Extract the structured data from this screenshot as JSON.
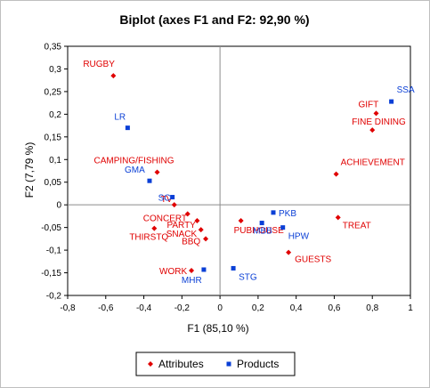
{
  "chart_data": {
    "type": "scatter",
    "title": "Biplot (axes F1 and F2: 92,90 %)",
    "xlabel": "F1 (85,10 %)",
    "ylabel": "F2 (7,79 %)",
    "xlim": [
      -0.8,
      1
    ],
    "ylim": [
      -0.2,
      0.35
    ],
    "xticks": [
      "-0,8",
      "-0,6",
      "-0,4",
      "-0,2",
      "0",
      "0,2",
      "0,4",
      "0,6",
      "0,8",
      "1"
    ],
    "yticks": [
      "-0,2",
      "-0,15",
      "-0,1",
      "-0,05",
      "0",
      "0,05",
      "0,1",
      "0,15",
      "0,2",
      "0,25",
      "0,3",
      "0,35"
    ],
    "grid": false,
    "legend_position": "bottom",
    "series": [
      {
        "name": "Attributes",
        "color": "#e00000",
        "marker": "diamond",
        "points": [
          {
            "label": "RUGBY",
            "x": -0.56,
            "y": 0.285
          },
          {
            "label": "CAMPING/FISHING",
            "x": -0.33,
            "y": 0.072
          },
          {
            "label": "TV",
            "x": -0.24,
            "y": 0.0
          },
          {
            "label": "CONCERT",
            "x": -0.17,
            "y": -0.02
          },
          {
            "label": "PARTY",
            "x": -0.12,
            "y": -0.035
          },
          {
            "label": "THIRSTQ",
            "x": -0.345,
            "y": -0.052
          },
          {
            "label": "SNACK",
            "x": -0.1,
            "y": -0.055
          },
          {
            "label": "BBQ",
            "x": -0.075,
            "y": -0.075
          },
          {
            "label": "WORK",
            "x": -0.15,
            "y": -0.145
          },
          {
            "label": "GIFT",
            "x": 0.82,
            "y": 0.202
          },
          {
            "label": "FINE DINING",
            "x": 0.8,
            "y": 0.165
          },
          {
            "label": "ACHIEVEMENT",
            "x": 0.61,
            "y": 0.068
          },
          {
            "label": "TREAT",
            "x": 0.62,
            "y": -0.028
          },
          {
            "label": "PUBHOUSE",
            "x": 0.11,
            "y": -0.035
          },
          {
            "label": "GUESTS",
            "x": 0.36,
            "y": -0.105
          }
        ]
      },
      {
        "name": "Products",
        "color": "#0a3fd6",
        "marker": "square",
        "points": [
          {
            "label": "LR",
            "x": -0.485,
            "y": 0.17
          },
          {
            "label": "GMA",
            "x": -0.37,
            "y": 0.053
          },
          {
            "label": "SC",
            "x": -0.25,
            "y": 0.017
          },
          {
            "label": "MHR",
            "x": -0.085,
            "y": -0.143
          },
          {
            "label": "SSA",
            "x": 0.9,
            "y": 0.228
          },
          {
            "label": "PKB",
            "x": 0.28,
            "y": -0.017
          },
          {
            "label": "MBB",
            "x": 0.22,
            "y": -0.04
          },
          {
            "label": "HPW",
            "x": 0.33,
            "y": -0.05
          },
          {
            "label": "STG",
            "x": 0.07,
            "y": -0.14
          }
        ]
      }
    ]
  }
}
